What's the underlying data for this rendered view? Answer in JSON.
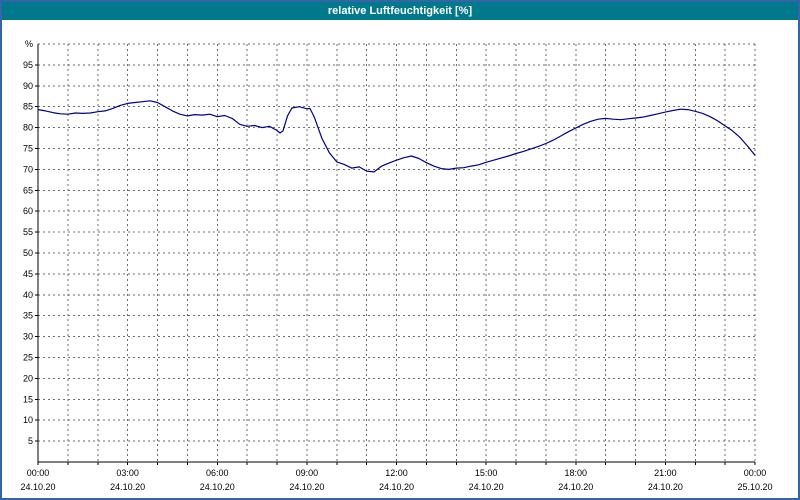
{
  "window": {
    "title": "relative Luftfeuchtigkeit [%]"
  },
  "colors": {
    "titlebar_bg": "#00798c",
    "titlebar_text": "#ffffff",
    "frame_border": "#3465a4",
    "plot_line": "#00008b",
    "grid": "#6e6e6e",
    "axis": "#000000",
    "background": "#ffffff"
  },
  "chart_data": {
    "type": "line",
    "title": "relative Luftfeuchtigkeit [%]",
    "ylabel": "%",
    "y_unit_label": "%",
    "ylim": [
      0,
      100
    ],
    "y_tick_step": 5,
    "y_ticks": [
      95,
      90,
      85,
      80,
      75,
      70,
      65,
      60,
      55,
      50,
      45,
      40,
      35,
      30,
      25,
      20,
      15,
      10,
      5
    ],
    "x_hours_range": [
      0,
      24
    ],
    "x_grid_interval_hours": 1,
    "x_ticks": [
      {
        "hour": 0,
        "time": "00:00",
        "date": "24.10.20"
      },
      {
        "hour": 3,
        "time": "03:00",
        "date": "24.10.20"
      },
      {
        "hour": 6,
        "time": "06:00",
        "date": "24.10.20"
      },
      {
        "hour": 9,
        "time": "09:00",
        "date": "24.10.20"
      },
      {
        "hour": 12,
        "time": "12:00",
        "date": "24.10.20"
      },
      {
        "hour": 15,
        "time": "15:00",
        "date": "24.10.20"
      },
      {
        "hour": 18,
        "time": "18:00",
        "date": "24.10.20"
      },
      {
        "hour": 21,
        "time": "21:00",
        "date": "24.10.20"
      },
      {
        "hour": 24,
        "time": "00:00",
        "date": "25.10.20"
      }
    ],
    "grid": true,
    "legend": "none",
    "series": [
      {
        "name": "relative Luftfeuchtigkeit",
        "color": "#00008b",
        "points": [
          [
            0,
            84.3
          ],
          [
            0.25,
            84.0
          ],
          [
            0.5,
            83.6
          ],
          [
            0.75,
            83.3
          ],
          [
            1,
            83.2
          ],
          [
            1.25,
            83.5
          ],
          [
            1.5,
            83.4
          ],
          [
            1.75,
            83.5
          ],
          [
            2,
            83.8
          ],
          [
            2.25,
            84.0
          ],
          [
            2.5,
            84.6
          ],
          [
            2.75,
            85.3
          ],
          [
            3,
            85.8
          ],
          [
            3.25,
            86.0
          ],
          [
            3.5,
            86.2
          ],
          [
            3.75,
            86.4
          ],
          [
            4,
            86.0
          ],
          [
            4.25,
            85.0
          ],
          [
            4.5,
            84.0
          ],
          [
            4.75,
            83.2
          ],
          [
            5,
            82.8
          ],
          [
            5.25,
            83.1
          ],
          [
            5.5,
            83.0
          ],
          [
            5.75,
            83.2
          ],
          [
            6,
            82.6
          ],
          [
            6.25,
            82.9
          ],
          [
            6.5,
            82.2
          ],
          [
            6.75,
            80.8
          ],
          [
            7,
            80.3
          ],
          [
            7.25,
            80.5
          ],
          [
            7.5,
            80.0
          ],
          [
            7.75,
            80.3
          ],
          [
            8,
            79.3
          ],
          [
            8.1,
            78.7
          ],
          [
            8.2,
            79.2
          ],
          [
            8.35,
            82.8
          ],
          [
            8.5,
            84.7
          ],
          [
            8.75,
            85.0
          ],
          [
            9,
            84.5
          ],
          [
            9.1,
            84.6
          ],
          [
            9.25,
            82.5
          ],
          [
            9.5,
            77.5
          ],
          [
            9.75,
            74.0
          ],
          [
            10,
            71.8
          ],
          [
            10.25,
            71.2
          ],
          [
            10.5,
            70.3
          ],
          [
            10.75,
            70.6
          ],
          [
            11,
            69.6
          ],
          [
            11.25,
            69.4
          ],
          [
            11.5,
            70.8
          ],
          [
            11.75,
            71.5
          ],
          [
            12,
            72.2
          ],
          [
            12.25,
            72.8
          ],
          [
            12.5,
            73.2
          ],
          [
            12.75,
            72.6
          ],
          [
            13,
            71.6
          ],
          [
            13.25,
            70.8
          ],
          [
            13.5,
            70.2
          ],
          [
            13.75,
            70.0
          ],
          [
            14,
            70.3
          ],
          [
            14.25,
            70.4
          ],
          [
            14.5,
            70.8
          ],
          [
            14.75,
            71.1
          ],
          [
            15,
            71.7
          ],
          [
            15.25,
            72.2
          ],
          [
            15.5,
            72.7
          ],
          [
            15.75,
            73.2
          ],
          [
            16,
            73.8
          ],
          [
            16.25,
            74.3
          ],
          [
            16.5,
            74.9
          ],
          [
            16.75,
            75.5
          ],
          [
            17,
            76.2
          ],
          [
            17.25,
            77.0
          ],
          [
            17.5,
            78.0
          ],
          [
            17.75,
            79.0
          ],
          [
            18,
            79.9
          ],
          [
            18.25,
            80.8
          ],
          [
            18.5,
            81.5
          ],
          [
            18.75,
            82.0
          ],
          [
            19,
            82.2
          ],
          [
            19.25,
            82.0
          ],
          [
            19.5,
            81.9
          ],
          [
            19.75,
            82.1
          ],
          [
            20,
            82.3
          ],
          [
            20.25,
            82.5
          ],
          [
            20.5,
            82.9
          ],
          [
            20.75,
            83.3
          ],
          [
            21,
            83.7
          ],
          [
            21.25,
            84.1
          ],
          [
            21.5,
            84.4
          ],
          [
            21.75,
            84.3
          ],
          [
            22,
            83.9
          ],
          [
            22.25,
            83.4
          ],
          [
            22.5,
            82.6
          ],
          [
            22.75,
            81.6
          ],
          [
            23,
            80.4
          ],
          [
            23.25,
            79.2
          ],
          [
            23.5,
            77.6
          ],
          [
            23.75,
            75.6
          ],
          [
            24,
            73.4
          ]
        ]
      }
    ]
  }
}
